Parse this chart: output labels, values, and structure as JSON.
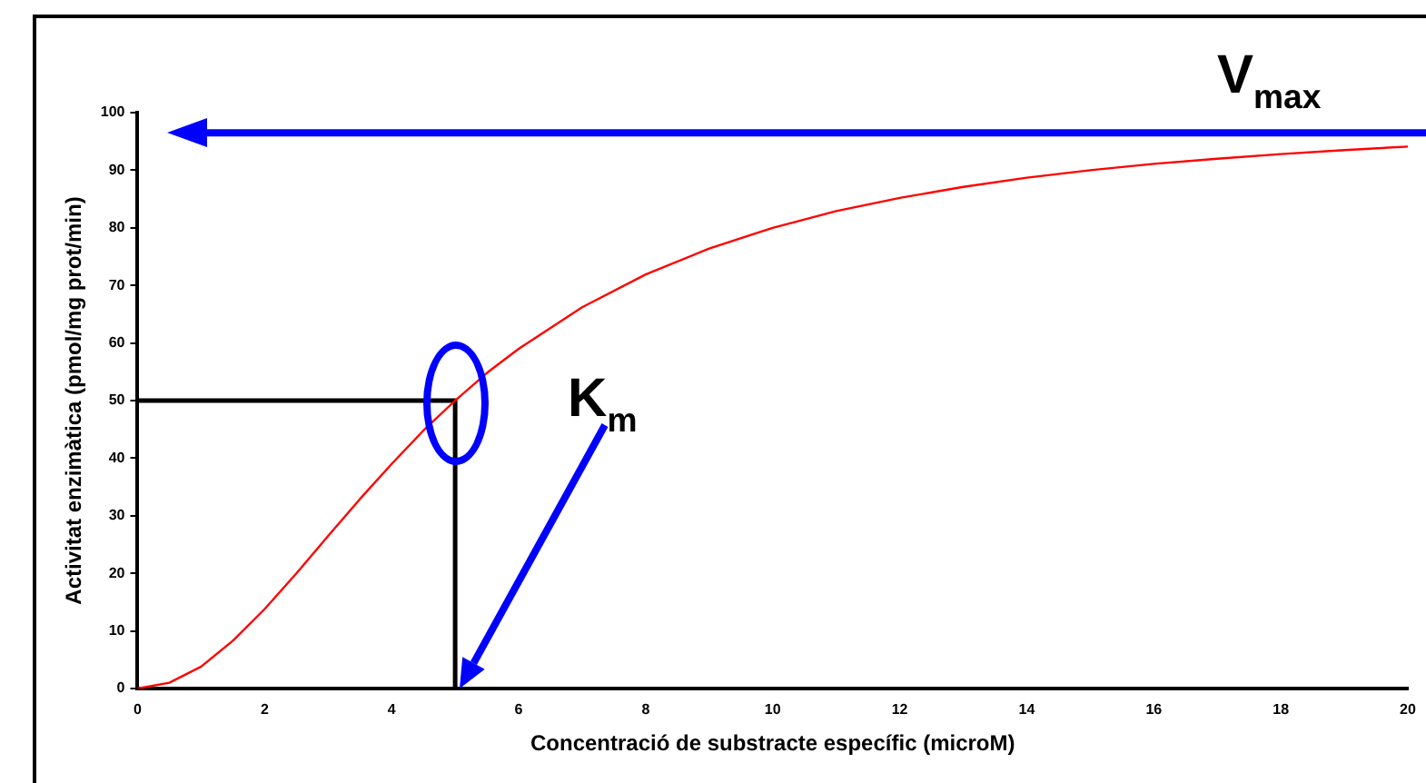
{
  "chart_data": {
    "type": "line",
    "xlabel": "Concentració de substracte específic (microM)",
    "ylabel": "Activitat enzimàtica (pmol/mg prot/min)",
    "xlim": [
      0,
      20
    ],
    "xticks": [
      0,
      2,
      4,
      6,
      8,
      10,
      12,
      14,
      16,
      18,
      20
    ],
    "ylim": [
      0,
      100
    ],
    "yticks": [
      0,
      10,
      20,
      30,
      40,
      50,
      60,
      70,
      80,
      90,
      100
    ],
    "grid": false,
    "legend": false,
    "marker": "none",
    "line_style": "solid",
    "series": [
      {
        "color": "#ff0000",
        "x": [
          0,
          0.5,
          1,
          1.5,
          2,
          2.5,
          3,
          3.5,
          4,
          4.5,
          5,
          5.5,
          6,
          7,
          8,
          9,
          10,
          11,
          12,
          13,
          14,
          15,
          16,
          17,
          18,
          19,
          20
        ],
        "values": [
          0,
          1,
          3.8,
          8.3,
          13.8,
          20,
          26.5,
          32.9,
          39,
          44.8,
          50,
          54.8,
          59,
          66.2,
          71.9,
          76.4,
          80,
          82.9,
          85.2,
          87.1,
          88.7,
          90,
          91.1,
          92,
          92.8,
          93.5,
          94.1
        ]
      },
      {
        "color": "#000000",
        "x": [
          0,
          5,
          5
        ],
        "values": [
          50,
          50,
          0
        ]
      }
    ],
    "ref_lines": [
      {
        "axis": "y",
        "value": 96.5,
        "label": "V$_{max}$",
        "color": "#0000ff"
      }
    ],
    "annotations": [
      "K$_{m}$"
    ]
  }
}
